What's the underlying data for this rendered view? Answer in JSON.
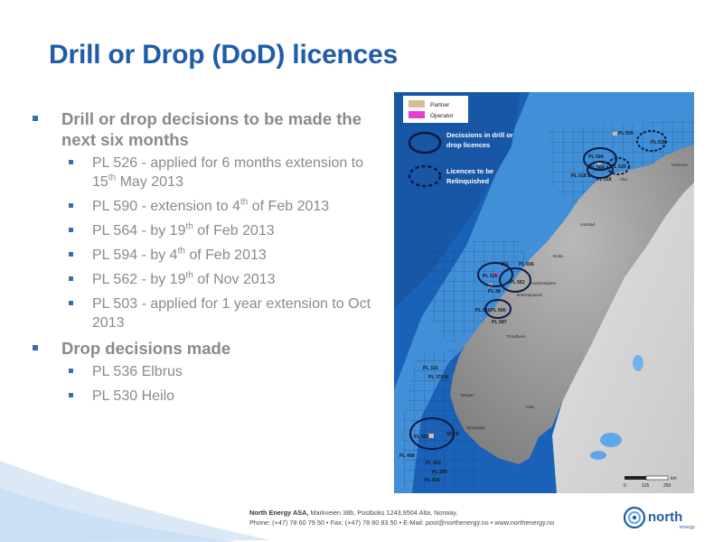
{
  "title": "Drill or Drop (DoD) licences",
  "bullets": {
    "drill_or_drop_heading": "Drill or drop decisions to be made the next six months",
    "pl526_a": "PL 526 - applied for 6 months extension to 15",
    "pl526_sup": "th",
    "pl526_b": " May 2013",
    "pl590_a": "PL 590 - extension to 4",
    "pl590_sup": "th",
    "pl590_b": " of Feb 2013",
    "pl564_a": "PL 564 - by 19",
    "pl564_sup": "th",
    "pl564_b": " of Feb 2013",
    "pl594_a": "PL 594 - by 4",
    "pl594_sup": "th",
    "pl594_b": " of Feb 2013",
    "pl562_a": "PL 562 - by 19",
    "pl562_sup": "th",
    "pl562_b": " of Nov 2013",
    "pl503": "PL 503 - applied for 1 year extension to Oct 2013",
    "drop_heading": "Drop decisions made",
    "pl536": "PL 536 Elbrus",
    "pl530": "PL 530 Heilo"
  },
  "map": {
    "legend": {
      "partner": "Partner",
      "operator": "Operator",
      "partner_color": "#d8b998",
      "operator_color": "#e83fd0"
    },
    "circle_legend": {
      "solid_line1": "Decissions in drill or",
      "solid_line2": "drop licences",
      "dashed_line1": "Licences to be",
      "dashed_line2": "Relinquished"
    },
    "licence_labels": {
      "pl535": "PL 535",
      "pl536": "PL 536",
      "pl594": "PL 594",
      "pl564": "PL 564",
      "pl530": "PL 530",
      "pl518b": "PL 518 B",
      "pl518": "PL 518",
      "pl601": "601",
      "pl656": "PL 656",
      "pl526": "PL 526",
      "pl562": "PL 562",
      "pl38": "PL 38",
      "pl510": "PL 510",
      "pl590": "PL 590",
      "pl587": "PL 587",
      "pl310": "PL 310",
      "pl370b": "PL 370 B",
      "pl503": "PL 503",
      "pl503b": "503 B",
      "pl498": "PL 498",
      "pl450": "PL 450",
      "pl299": "PL 299",
      "pl616": "PL 616"
    },
    "place_labels": {
      "kirkenes": "Kirkenes",
      "alta": "Alta",
      "harstad": "Harstad",
      "bodo": "Bodø",
      "sandnessjoen": "Sandnessjøen",
      "bronnoysund": "Brønnøysund",
      "trondheim": "Trondheim",
      "bergen": "Bergen",
      "oslo": "Oslo",
      "stavanger": "Stavanger"
    },
    "scale": {
      "tick0": "0",
      "tick1": "125",
      "tick2": "250",
      "unit": "km"
    },
    "colors": {
      "sea_deep": "#1a62b8",
      "sea_shelf": "#4f9fe0",
      "land_norway": "#9a9a9a",
      "land_sweden": "#d6d6d6"
    }
  },
  "footer": {
    "line1_company": "North Energy ASA,",
    "line1_rest": " Markveien 38b, Postboks 1243,9504 Alta, Norway.",
    "line2": "Phone: (+47) 78 60 79 50  •  Fax: (+47) 78 60 83 50  •  E-Mail: post@northenergy.no  •  www.northenergy.no"
  },
  "logo": {
    "name": "north",
    "sub": "energy"
  }
}
